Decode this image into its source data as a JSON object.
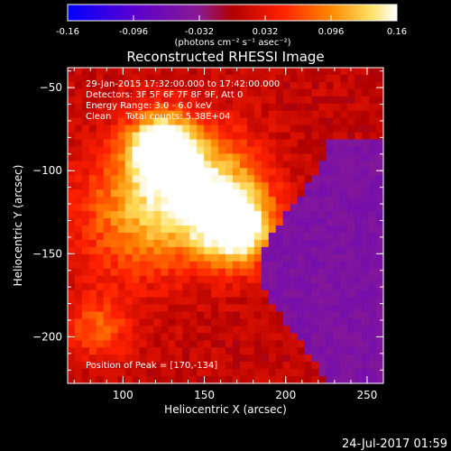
{
  "colorbar": {
    "ticks": [
      "-0.16",
      "-0.096",
      "-0.032",
      "0.032",
      "0.096",
      "0.16"
    ],
    "range": [
      -0.16,
      0.16
    ],
    "unit_label": "(photons cm⁻² s⁻¹ asec⁻²)",
    "colors": [
      "#0000ff",
      "#6a00c8",
      "#8a1a90",
      "#b00000",
      "#ff2000",
      "#ff8800",
      "#ffe060",
      "#ffffff"
    ]
  },
  "chart_data": {
    "type": "heatmap",
    "title": "Reconstructed RHESSI Image",
    "xlabel": "Heliocentric X (arcsec)",
    "ylabel": "Heliocentric Y (arcsec)",
    "xlim": [
      66,
      260
    ],
    "ylim": [
      -228,
      -38
    ],
    "xticks": [
      100,
      150,
      200,
      250
    ],
    "yticks": [
      -50,
      -100,
      -150,
      -200
    ],
    "sources": [
      {
        "x": 123,
        "y": -85,
        "intensity": 0.16,
        "sigma": 14
      },
      {
        "x": 170,
        "y": -134,
        "intensity": 0.16,
        "sigma": 16
      },
      {
        "x": 150,
        "y": -110,
        "intensity": 0.12,
        "sigma": 24
      },
      {
        "x": 110,
        "y": -125,
        "intensity": 0.09,
        "sigma": 28
      },
      {
        "x": 85,
        "y": -195,
        "intensity": 0.06,
        "sigma": 14
      }
    ],
    "negative_region": {
      "x_min": 205,
      "y_top": -120,
      "intensity": -0.05
    }
  },
  "annotations": {
    "time_range": "29-Jan-2015 17:32:00.000 to 17:42:00.000",
    "detectors": "Detectors: 3F 5F 6F 7F 8F 9F, Att 0",
    "energy_range": "Energy Range: 3.0 - 6.0 keV",
    "clean_counts": "Clean     Total counts: 5.38E+04",
    "peak": "Position of Peak = [170,-134]"
  },
  "footer": {
    "timestamp": "24-Jul-2017 01:59"
  }
}
